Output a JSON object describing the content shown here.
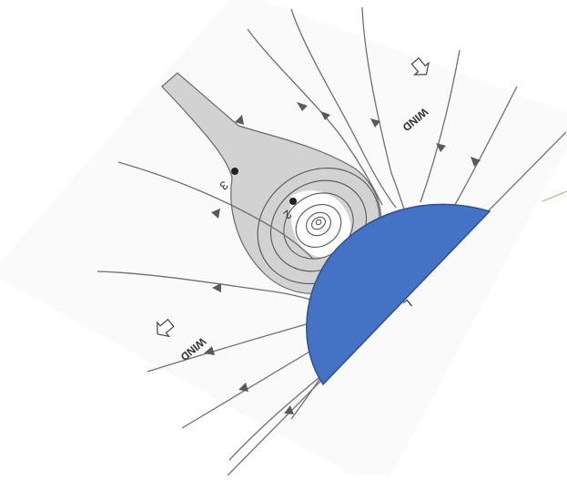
{
  "figure": {
    "wind_label_upper": "WIND",
    "wind_label_lower": "WIND",
    "point_label_2": "2",
    "point_label_3": "3",
    "point_label_L": "L",
    "overlay_shape_color": "#4472C4",
    "overlay_shape_outline": "#2F528F",
    "wake_fill_color": "#cfcfcf",
    "background_color": "#ffffff"
  }
}
